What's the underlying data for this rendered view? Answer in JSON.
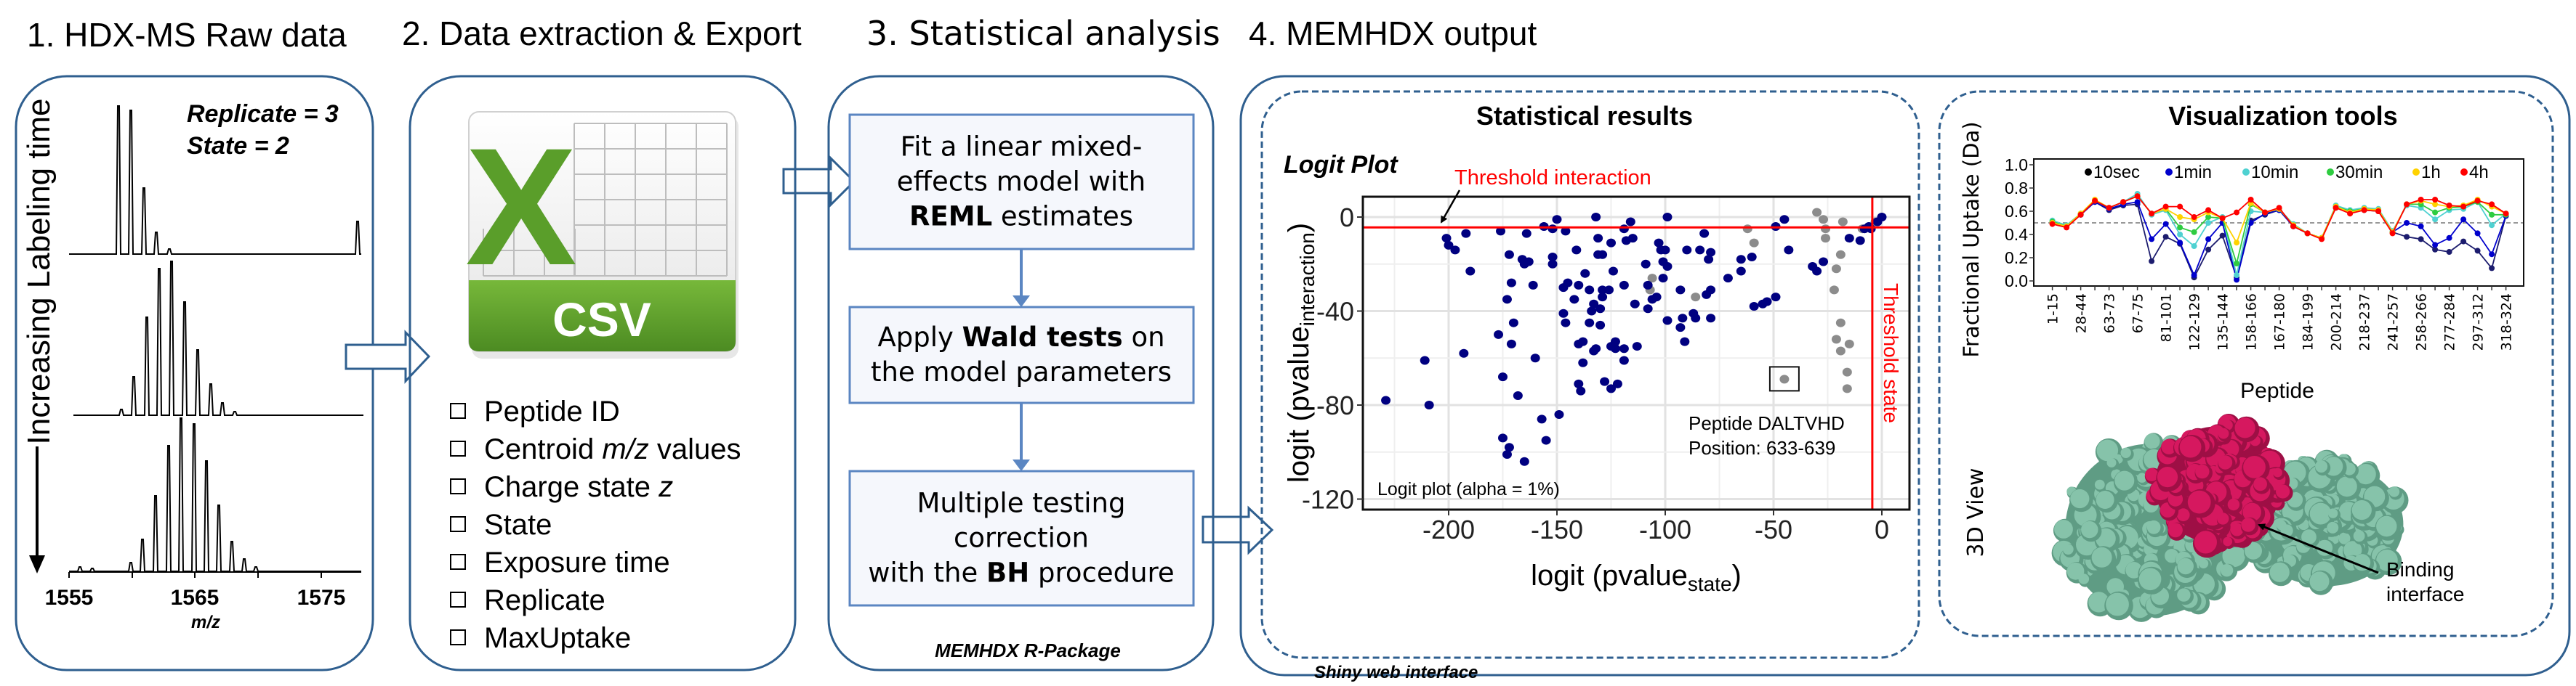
{
  "panels": {
    "raw": {
      "title": "1. HDX-MS Raw data",
      "replicate": "Replicate = 3",
      "state": "State = 2",
      "time_axis": "Increasing Labeling time",
      "mz_ticks": [
        "1555",
        "1565",
        "1575"
      ],
      "mz_label": "m/z"
    },
    "export": {
      "title": "2. Data extraction & Export",
      "icon_label": "CSV",
      "icon_letter": "X",
      "fields": [
        {
          "pre": "Peptide ID",
          "em": "",
          "post": ""
        },
        {
          "pre": "Centroid ",
          "em": "m/z",
          "post": " values"
        },
        {
          "pre": "Charge state ",
          "em": "z",
          "post": ""
        },
        {
          "pre": "State",
          "em": "",
          "post": ""
        },
        {
          "pre": "Exposure time",
          "em": "",
          "post": ""
        },
        {
          "pre": "Replicate",
          "em": "",
          "post": ""
        },
        {
          "pre": "MaxUptake",
          "em": "",
          "post": ""
        }
      ]
    },
    "stats": {
      "title": "3. Statistical analysis",
      "steps": [
        {
          "lines": [
            {
              "pre": "Fit a linear mixed-",
              "bold": "",
              "post": ""
            },
            {
              "pre": "effects model with",
              "bold": "",
              "post": ""
            },
            {
              "pre": "",
              "bold": "REML",
              "post": " estimates"
            }
          ]
        },
        {
          "lines": [
            {
              "pre": "Apply ",
              "bold": "Wald tests",
              "post": " on"
            },
            {
              "pre": "the model parameters",
              "bold": "",
              "post": ""
            }
          ]
        },
        {
          "lines": [
            {
              "pre": "Multiple testing",
              "bold": "",
              "post": ""
            },
            {
              "pre": "correction",
              "bold": "",
              "post": ""
            },
            {
              "pre": "with the ",
              "bold": "BH",
              "post": " procedure"
            }
          ]
        }
      ],
      "footer": "MEMHDX R-Package"
    },
    "output": {
      "title": "4. MEMHDX output",
      "footer": "Shiny web interface",
      "results_title": "Statistical results",
      "viz_title": "Visualization tools",
      "view3d_label": "3D View",
      "binding_line1": "Binding",
      "binding_line2": "interface"
    }
  },
  "colors": {
    "frame": "#2f5f8f",
    "step_fill": "#f5f7fc",
    "step_stroke": "#5b86c2",
    "significant": "#000080",
    "not_significant": "#8c8c8c",
    "threshold": "#ff0000",
    "protein": "#86c3aa",
    "binding_site": "#d6185f",
    "csv_green": "#5a9e2a"
  },
  "chart_data": [
    {
      "type": "scatter",
      "title": "Logit Plot",
      "xlabel": {
        "pre": "logit (pvalue",
        "sub": "state",
        "post": ")"
      },
      "ylabel": {
        "pre": "logit (pvalue",
        "sub": "interaction",
        "post": ")"
      },
      "xlim": [
        -240,
        10
      ],
      "ylim": [
        -127,
        7
      ],
      "xticks": [
        "-200",
        "-150",
        "-100",
        "-50",
        "0"
      ],
      "yticks": [
        "0",
        "-40",
        "-80",
        "-120"
      ],
      "grid": true,
      "threshold_interaction": -4.4,
      "threshold_state": -4.4,
      "threshold_interaction_label": "Threshold interaction",
      "threshold_state_label": "Threshold state",
      "note": "Logit plot (alpha = 1%)",
      "highlight": {
        "label1": "Peptide DALTVHD",
        "label2": "Position: 633-639",
        "x": -45,
        "y": -69
      },
      "significant_points": [
        [
          -229,
          -78
        ],
        [
          -211,
          -61
        ],
        [
          -209,
          -80
        ],
        [
          -201,
          -9
        ],
        [
          -200,
          -12
        ],
        [
          -197,
          -14
        ],
        [
          -193,
          -58
        ],
        [
          -192,
          -7
        ],
        [
          -190,
          -23
        ],
        [
          -177,
          -50
        ],
        [
          -176,
          -6
        ],
        [
          -175,
          -68
        ],
        [
          -175,
          -94
        ],
        [
          -173,
          -101
        ],
        [
          -173,
          -35
        ],
        [
          -172,
          -16
        ],
        [
          -172,
          -98
        ],
        [
          -171,
          -54
        ],
        [
          -171,
          -28
        ],
        [
          -170,
          -45
        ],
        [
          -168,
          -76
        ],
        [
          -165,
          -104
        ],
        [
          -166,
          -18
        ],
        [
          -165,
          -20
        ],
        [
          -164,
          -7
        ],
        [
          -163,
          -19
        ],
        [
          -161,
          -29
        ],
        [
          -160,
          -60
        ],
        [
          -157,
          -86
        ],
        [
          -156,
          -4
        ],
        [
          -155,
          -95
        ],
        [
          -152,
          -5
        ],
        [
          -152,
          -17
        ],
        [
          -152,
          -20
        ],
        [
          -150,
          -1
        ],
        [
          -149,
          -84
        ],
        [
          -147,
          -30
        ],
        [
          -147,
          -41
        ],
        [
          -146,
          -6
        ],
        [
          -146,
          -45
        ],
        [
          -145,
          -28
        ],
        [
          -142,
          -35
        ],
        [
          -141,
          -14
        ],
        [
          -140,
          -54
        ],
        [
          -140,
          -29
        ],
        [
          -140,
          -71
        ],
        [
          -139,
          -74
        ],
        [
          -138,
          -53
        ],
        [
          -138,
          -62
        ],
        [
          -137,
          -24
        ],
        [
          -135,
          -45
        ],
        [
          -135,
          -31
        ],
        [
          -134,
          -40
        ],
        [
          -133,
          -37
        ],
        [
          -133,
          -57
        ],
        [
          -132,
          -56
        ],
        [
          -132,
          0
        ],
        [
          -131,
          -9
        ],
        [
          -131,
          -16
        ],
        [
          -130,
          -39
        ],
        [
          -130,
          -46
        ],
        [
          -129,
          -31
        ],
        [
          -129,
          -16
        ],
        [
          -129,
          -34
        ],
        [
          -128,
          -70
        ],
        [
          -126,
          -31
        ],
        [
          -125,
          -11
        ],
        [
          -125,
          -55
        ],
        [
          -125,
          -73
        ],
        [
          -124,
          -23
        ],
        [
          -123,
          -53
        ],
        [
          -123,
          -56
        ],
        [
          -122,
          -71
        ],
        [
          -119,
          -5
        ],
        [
          -119,
          -29
        ],
        [
          -119,
          -56
        ],
        [
          -119,
          -61
        ],
        [
          -118,
          -10
        ],
        [
          -116,
          -2
        ],
        [
          -115,
          -9
        ],
        [
          -114,
          -37
        ],
        [
          -113,
          -55
        ],
        [
          -109,
          -20
        ],
        [
          -108,
          -29
        ],
        [
          -108,
          -39
        ],
        [
          -106,
          -35
        ],
        [
          -104,
          -34
        ],
        [
          -103,
          -11
        ],
        [
          -102,
          -14
        ],
        [
          -101,
          -26
        ],
        [
          -101,
          -19
        ],
        [
          -100,
          -14
        ],
        [
          -99,
          0
        ],
        [
          -99,
          -44
        ],
        [
          -99,
          -21
        ],
        [
          -93,
          -31
        ],
        [
          -93,
          -47
        ],
        [
          -92,
          -43
        ],
        [
          -91,
          -53
        ],
        [
          -90,
          -14
        ],
        [
          -87,
          -41
        ],
        [
          -86,
          -43
        ],
        [
          -84,
          -14
        ],
        [
          -82,
          -7
        ],
        [
          -81,
          -33
        ],
        [
          -80,
          -18
        ],
        [
          -79,
          -31
        ],
        [
          -79,
          -15
        ],
        [
          -79,
          -43
        ],
        [
          -71,
          -26
        ],
        [
          -65,
          -23
        ],
        [
          -65,
          -18
        ],
        [
          -60,
          -17
        ],
        [
          -59,
          -38
        ],
        [
          -55,
          -37
        ],
        [
          -53,
          -36
        ],
        [
          -49,
          -4
        ],
        [
          -49,
          -34
        ],
        [
          -45,
          -1
        ],
        [
          -43,
          -14
        ],
        [
          -32,
          -21
        ],
        [
          -30,
          -23
        ],
        [
          -27,
          -19
        ],
        [
          -15,
          -9
        ],
        [
          -10,
          -10
        ],
        [
          -8,
          -5
        ],
        [
          -6,
          -4
        ],
        [
          -5,
          -5
        ],
        [
          -2,
          -2
        ],
        [
          0,
          0
        ]
      ],
      "nonsignificant_points": [
        [
          -106,
          -26
        ],
        [
          -107,
          -31
        ],
        [
          -86,
          -34
        ],
        [
          -62,
          -5
        ],
        [
          -59,
          -11
        ],
        [
          -45,
          -69
        ],
        [
          -30,
          2
        ],
        [
          -27,
          -1
        ],
        [
          -26,
          -5
        ],
        [
          -26,
          -9
        ],
        [
          -18,
          -2
        ],
        [
          -19,
          -16
        ],
        [
          -21,
          -22
        ],
        [
          -22,
          -31
        ],
        [
          -19,
          -45
        ],
        [
          -21,
          -52
        ],
        [
          -19,
          -57
        ],
        [
          -15,
          -54
        ],
        [
          -16,
          -66
        ],
        [
          -16,
          -73
        ],
        [
          -9,
          -5
        ],
        [
          -3,
          -2
        ]
      ]
    },
    {
      "type": "line",
      "xlabel": "Peptide",
      "ylabel": "Fractional Uptake (Da)",
      "ylim": [
        0,
        1.0
      ],
      "yticks": [
        "0.0",
        "0.2",
        "0.4",
        "0.6",
        "0.8",
        "1.0"
      ],
      "reference_line": 0.5,
      "legend_placement": "top",
      "categories": [
        "1-15",
        "",
        "28-44",
        "",
        "63-73",
        "",
        "67-75",
        "",
        "81-101",
        "",
        "122-129",
        "",
        "135-144",
        "",
        "158-166",
        "",
        "167-180",
        "",
        "184-199",
        "",
        "200-214",
        "",
        "218-237",
        "",
        "241-257",
        "",
        "258-266",
        "",
        "277-284",
        "",
        "297-312",
        "",
        "318-324"
      ],
      "series": [
        {
          "name": "10sec",
          "color": "#1c1c6e",
          "legend_color": "#000000",
          "values": [
            0.5,
            0.47,
            0.57,
            0.68,
            0.61,
            0.65,
            0.66,
            0.17,
            0.38,
            0.32,
            0.03,
            0.27,
            0.39,
            0.03,
            0.52,
            0.57,
            0.61,
            0.47,
            0.41,
            0.37,
            0.63,
            0.59,
            0.61,
            0.6,
            0.42,
            0.38,
            0.36,
            0.27,
            0.25,
            0.34,
            0.26,
            0.11,
            0.56
          ]
        },
        {
          "name": "1min",
          "color": "#0000cc",
          "legend_color": "#0000cc",
          "values": [
            0.5,
            0.47,
            0.57,
            0.68,
            0.62,
            0.66,
            0.68,
            0.36,
            0.49,
            0.33,
            0.05,
            0.36,
            0.5,
            0.01,
            0.5,
            0.58,
            0.61,
            0.47,
            0.41,
            0.37,
            0.64,
            0.59,
            0.62,
            0.61,
            0.42,
            0.5,
            0.47,
            0.31,
            0.37,
            0.53,
            0.41,
            0.23,
            0.56
          ]
        },
        {
          "name": "10min",
          "color": "#4fd1d1",
          "legend_color": "#4fd1d1",
          "values": [
            0.52,
            0.48,
            0.58,
            0.69,
            0.63,
            0.68,
            0.75,
            0.57,
            0.61,
            0.4,
            0.3,
            0.5,
            0.55,
            0.05,
            0.6,
            0.59,
            0.62,
            0.49,
            0.41,
            0.37,
            0.65,
            0.61,
            0.63,
            0.62,
            0.43,
            0.65,
            0.63,
            0.53,
            0.61,
            0.62,
            0.68,
            0.48,
            0.58
          ]
        },
        {
          "name": "30min",
          "color": "#2ecc40",
          "legend_color": "#2ecc40",
          "values": [
            0.51,
            0.47,
            0.58,
            0.69,
            0.63,
            0.68,
            0.73,
            0.58,
            0.62,
            0.46,
            0.42,
            0.55,
            0.54,
            0.15,
            0.66,
            0.59,
            0.62,
            0.48,
            0.41,
            0.37,
            0.64,
            0.6,
            0.62,
            0.61,
            0.42,
            0.66,
            0.66,
            0.59,
            0.63,
            0.64,
            0.68,
            0.57,
            0.57
          ]
        },
        {
          "name": "1h",
          "color": "#ffd200",
          "legend_color": "#ffd200",
          "values": [
            0.5,
            0.47,
            0.58,
            0.7,
            0.63,
            0.68,
            0.73,
            0.58,
            0.62,
            0.55,
            0.53,
            0.59,
            0.54,
            0.33,
            0.67,
            0.59,
            0.62,
            0.48,
            0.41,
            0.37,
            0.64,
            0.59,
            0.62,
            0.61,
            0.42,
            0.66,
            0.69,
            0.66,
            0.64,
            0.65,
            0.7,
            0.64,
            0.58
          ]
        },
        {
          "name": "4h",
          "color": "#ff0000",
          "legend_color": "#ff0000",
          "values": [
            0.49,
            0.46,
            0.57,
            0.69,
            0.63,
            0.68,
            0.73,
            0.58,
            0.64,
            0.64,
            0.55,
            0.61,
            0.54,
            0.59,
            0.7,
            0.59,
            0.63,
            0.47,
            0.41,
            0.36,
            0.63,
            0.58,
            0.61,
            0.6,
            0.41,
            0.66,
            0.7,
            0.7,
            0.65,
            0.64,
            0.69,
            0.66,
            0.58
          ]
        }
      ]
    }
  ]
}
